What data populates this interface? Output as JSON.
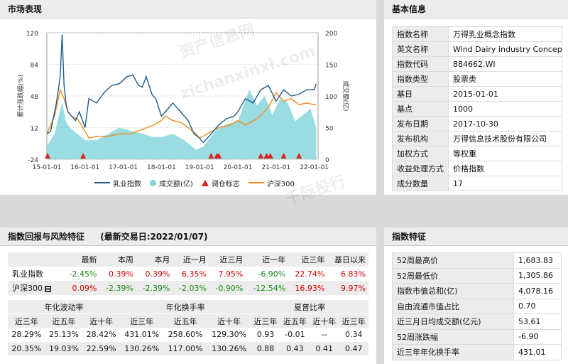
{
  "market": {
    "title": "市场表现",
    "legend": [
      "乳业指数",
      "成交额(亿)",
      "调仓标志",
      "沪深300"
    ]
  },
  "chart_data": {
    "type": "line",
    "x_ticks": [
      "15-01-01",
      "16-01-01",
      "17-01-01",
      "18-01-01",
      "19-01-01",
      "20-01-01",
      "21-01-01",
      "22-01-01"
    ],
    "y_left_ticks": [
      120,
      84,
      48,
      12,
      -24
    ],
    "y_right_ticks": [
      200,
      150,
      100,
      50,
      0
    ],
    "ylabel_left": "累计涨跌幅(%)",
    "ylabel_right": "成交额(亿)",
    "ylim_left": [
      -24,
      120
    ],
    "ylim_right": [
      0,
      200
    ],
    "x_range": [
      2015.0,
      2022.1
    ],
    "series": [
      {
        "name": "乳业指数",
        "color": "#1f5c8c",
        "x": [
          2015.0,
          2015.1,
          2015.25,
          2015.35,
          2015.4,
          2015.45,
          2015.5,
          2015.55,
          2015.65,
          2015.75,
          2015.85,
          2016.0,
          2016.1,
          2016.3,
          2016.5,
          2016.7,
          2016.9,
          2017.1,
          2017.25,
          2017.4,
          2017.5,
          2017.6,
          2017.75,
          2017.85,
          2018.0,
          2018.1,
          2018.3,
          2018.5,
          2018.7,
          2018.85,
          2019.0,
          2019.05,
          2019.1,
          2019.3,
          2019.5,
          2019.7,
          2019.9,
          2020.0,
          2020.2,
          2020.4,
          2020.6,
          2020.8,
          2021.0,
          2021.2,
          2021.4,
          2021.6,
          2021.8,
          2022.0,
          2022.05
        ],
        "values": [
          5,
          8,
          40,
          70,
          118,
          60,
          40,
          30,
          25,
          20,
          30,
          12,
          45,
          40,
          52,
          60,
          62,
          70,
          72,
          60,
          58,
          70,
          50,
          45,
          25,
          30,
          40,
          30,
          20,
          5,
          0,
          -3,
          -5,
          5,
          15,
          22,
          25,
          30,
          45,
          40,
          55,
          60,
          42,
          55,
          48,
          50,
          55,
          55,
          62
        ]
      },
      {
        "name": "沪深300",
        "color": "#f08c1e",
        "x": [
          2015.0,
          2015.2,
          2015.35,
          2015.45,
          2015.55,
          2015.65,
          2015.8,
          2016.0,
          2016.1,
          2016.3,
          2016.6,
          2016.9,
          2017.2,
          2017.5,
          2017.8,
          2018.0,
          2018.1,
          2018.3,
          2018.5,
          2018.7,
          2018.9,
          2019.0,
          2019.2,
          2019.5,
          2019.8,
          2020.0,
          2020.2,
          2020.5,
          2020.8,
          2021.0,
          2021.2,
          2021.4,
          2021.6,
          2021.8,
          2022.0,
          2022.05
        ],
        "values": [
          5,
          25,
          55,
          45,
          30,
          25,
          22,
          8,
          0,
          2,
          2,
          5,
          5,
          10,
          15,
          20,
          25,
          20,
          18,
          12,
          5,
          0,
          5,
          12,
          15,
          20,
          15,
          22,
          35,
          52,
          42,
          45,
          38,
          40,
          38,
          38
        ]
      },
      {
        "name": "成交额(亿)",
        "color": "#7fd3d9",
        "type": "area",
        "axis": "right",
        "x": [
          2015.0,
          2015.2,
          2015.4,
          2015.5,
          2015.6,
          2015.8,
          2016.0,
          2016.3,
          2016.6,
          2016.9,
          2017.2,
          2017.5,
          2017.8,
          2018.0,
          2018.3,
          2018.6,
          2018.9,
          2019.1,
          2019.4,
          2019.7,
          2020.0,
          2020.3,
          2020.5,
          2020.7,
          2020.9,
          2021.1,
          2021.3,
          2021.5,
          2021.7,
          2021.9,
          2022.05
        ],
        "values": [
          20,
          40,
          90,
          60,
          50,
          40,
          30,
          30,
          40,
          50,
          45,
          40,
          35,
          35,
          40,
          30,
          15,
          20,
          45,
          55,
          60,
          110,
          85,
          100,
          70,
          95,
          90,
          60,
          70,
          80,
          50
        ]
      }
    ],
    "markers": {
      "name": "调仓标志",
      "color": "#e02020",
      "x": [
        2015.02,
        2015.95,
        2019.3,
        2019.45,
        2019.5,
        2020.6,
        2020.75,
        2020.85,
        2021.2,
        2021.6
      ]
    }
  },
  "basic": {
    "title": "基本信息",
    "rows": [
      {
        "k": "指数名称",
        "v": "万得乳业概念指数"
      },
      {
        "k": "英文名称",
        "v": "Wind Dairy industry Concept In"
      },
      {
        "k": "指数代码",
        "v": "884662.WI"
      },
      {
        "k": "指数类型",
        "v": "股票类"
      },
      {
        "k": "基日",
        "v": "2015-01-01"
      },
      {
        "k": "基点",
        "v": "1000"
      },
      {
        "k": "发布日期",
        "v": "2017-10-30"
      },
      {
        "k": "发布机构",
        "v": "万得信息技术股份有限公司"
      },
      {
        "k": "加权方式",
        "v": "等权重"
      },
      {
        "k": "收益处理方式",
        "v": "价格指数"
      },
      {
        "k": "成分数量",
        "v": "17"
      }
    ]
  },
  "risk": {
    "title": "指数回报与风险特征",
    "trade_date": "(最新交易日:2022/01/07)",
    "headers": [
      "",
      "最新",
      "本周",
      "本月",
      "近一月",
      "近三月",
      "近一年",
      "近三年",
      "基日以来"
    ],
    "rows": [
      {
        "name": "乳业指数",
        "vals": [
          "-2.45%",
          "0.39%",
          "0.39%",
          "6.35%",
          "7.95%",
          "-6.90%",
          "22.74%",
          "6.83%"
        ]
      },
      {
        "name": "沪深300",
        "vals": [
          "0.09%",
          "-2.39%",
          "-2.39%",
          "-2.03%",
          "-0.90%",
          "-12.54%",
          "16.93%",
          "9.97%"
        ]
      }
    ],
    "groups": [
      "年化波动率",
      "年化换手率",
      "夏普比率"
    ],
    "subheaders": [
      "近三年",
      "近五年",
      "近十年",
      "近三年",
      "近五年",
      "近十年",
      "近三年",
      "近五年",
      "近十年",
      "近三年"
    ],
    "ratio_rows": [
      [
        "28.29%",
        "25.13%",
        "28.42%",
        "431.01%",
        "258.60%",
        "129.30%",
        "0.93",
        "-0.01",
        "--",
        "0.34"
      ],
      [
        "20.35%",
        "19.03%",
        "22.59%",
        "130.26%",
        "117.00%",
        "130.26%",
        "0.88",
        "0.43",
        "0.41",
        "0.47"
      ]
    ]
  },
  "features": {
    "title": "指数特征",
    "rows": [
      {
        "k": "52周最高价",
        "v": "1,683.83"
      },
      {
        "k": "52周最低价",
        "v": "1,305.86"
      },
      {
        "k": "指数市值总和(亿)",
        "v": "4,078.16"
      },
      {
        "k": "自由流通市值占比",
        "v": "0.70"
      },
      {
        "k": "近三月日均成交额(亿元)",
        "v": "53.61"
      },
      {
        "k": "52周涨跌幅",
        "v": "-6.90"
      },
      {
        "k": "近三年年化换手率",
        "v": "431.01"
      }
    ]
  },
  "watermark": [
    "资产信息网",
    "zichanxinxi.com",
    "千际投行"
  ],
  "colors": {
    "pos": "#d40000",
    "neg": "#1a8a1a",
    "header_bg": "#ececec"
  }
}
